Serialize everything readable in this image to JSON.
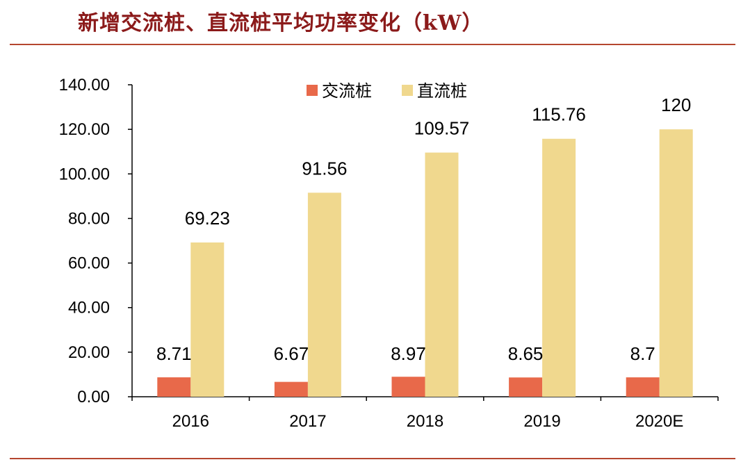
{
  "title": "新增交流桩、直流桩平均功率变化（kW）",
  "colors": {
    "title": "#8B1A1A",
    "rule": "#B5462F",
    "ac": "#E8694A",
    "dc": "#F0D88E",
    "axis": "#000000"
  },
  "chart_data": {
    "type": "bar",
    "title": "新增交流桩、直流桩平均功率变化（kW）",
    "categories": [
      "2016",
      "2017",
      "2018",
      "2019",
      "2020E"
    ],
    "series": [
      {
        "name": "交流桩",
        "values": [
          8.71,
          6.67,
          8.97,
          8.65,
          8.7
        ],
        "labels": [
          "8.71",
          "6.67",
          "8.97",
          "8.65",
          "8.7"
        ],
        "color": "#E8694A"
      },
      {
        "name": "直流桩",
        "values": [
          69.23,
          91.56,
          109.57,
          115.76,
          120
        ],
        "labels": [
          "69.23",
          "91.56",
          "109.57",
          "115.76",
          "120"
        ],
        "color": "#F0D88E"
      }
    ],
    "ylim": [
      0,
      140
    ],
    "yticks": [
      "0.00",
      "20.00",
      "40.00",
      "60.00",
      "80.00",
      "100.00",
      "120.00",
      "140.00"
    ],
    "xlabel": "",
    "ylabel": "",
    "grid": false,
    "legend_position": "top-center"
  }
}
